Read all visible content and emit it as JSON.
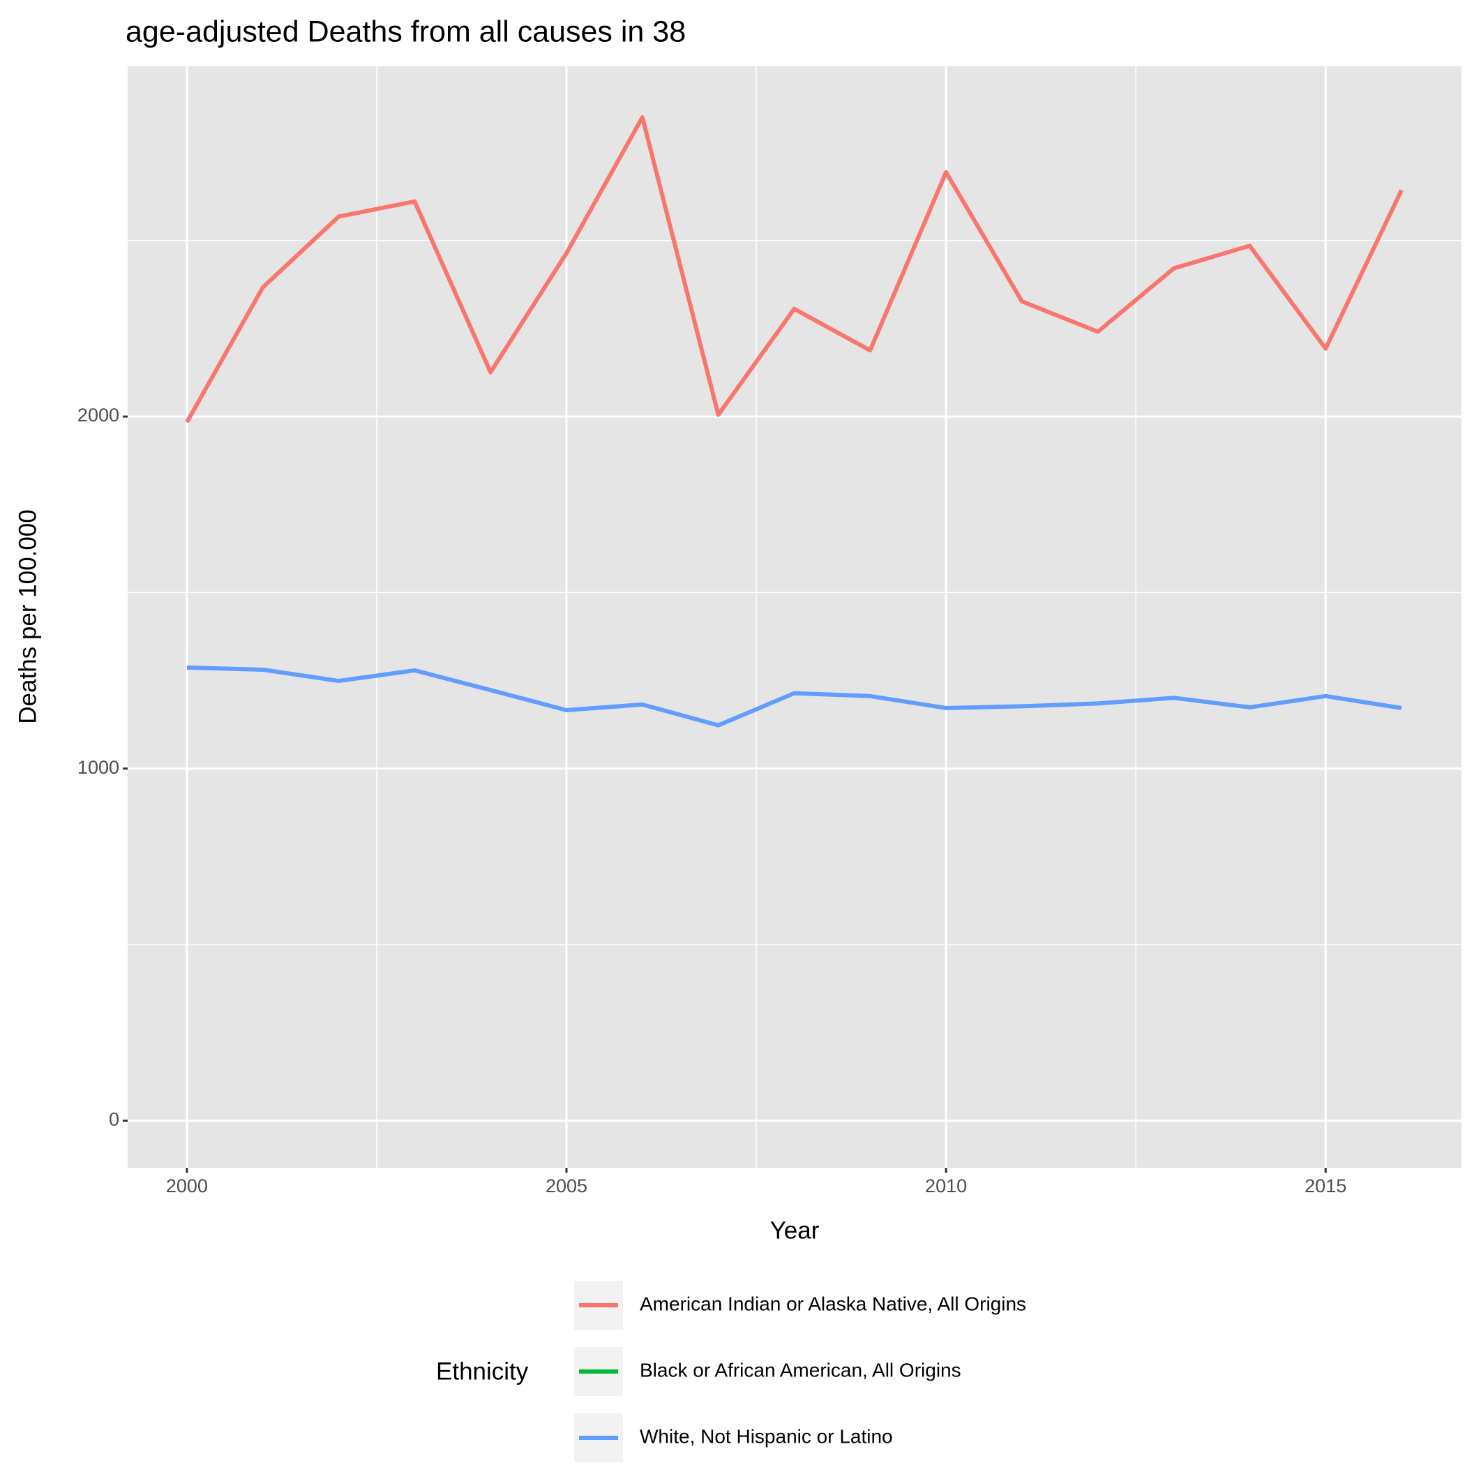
{
  "chart_data": {
    "type": "line",
    "title": "age-adjusted Deaths from all causes in 38",
    "x_label": "Year",
    "y_label": "Deaths per 100.000",
    "legend_title": "Ethnicity",
    "legend_position": "bottom",
    "x": [
      2000,
      2001,
      2002,
      2003,
      2004,
      2005,
      2006,
      2007,
      2008,
      2009,
      2010,
      2011,
      2012,
      2013,
      2014,
      2015,
      2016
    ],
    "series": [
      {
        "name": "American Indian or Alaska Native, All Origins",
        "color": "#F8766D",
        "values": [
          1984,
          2367,
          2568,
          2611,
          2126,
          2464,
          2850,
          2005,
          2306,
          2188,
          2694,
          2327,
          2241,
          2421,
          2485,
          2193,
          2643
        ]
      },
      {
        "name": "Black or African American, All Origins",
        "color": "#00BA38",
        "values": [
          null,
          null,
          null,
          null,
          null,
          null,
          null,
          null,
          null,
          null,
          null,
          null,
          null,
          null,
          null,
          null,
          null
        ]
      },
      {
        "name": "White, Not Hispanic or Latino",
        "color": "#619CFF",
        "values": [
          1287,
          1281,
          1249,
          1279,
          1223,
          1166,
          1182,
          1123,
          1214,
          1206,
          1172,
          1177,
          1185,
          1201,
          1174,
          1206,
          1172
        ]
      }
    ],
    "xlim": [
      1999.22,
      2016.79
    ],
    "xticks": [
      2000,
      2005,
      2010,
      2015
    ],
    "minor_xticks": [
      2002.5,
      2007.5,
      2012.5
    ],
    "ylim": [
      -134,
      2995
    ],
    "yticks": [
      0,
      1000,
      2000
    ],
    "minor_yticks": [
      500,
      1500,
      2500
    ],
    "grid": true
  }
}
